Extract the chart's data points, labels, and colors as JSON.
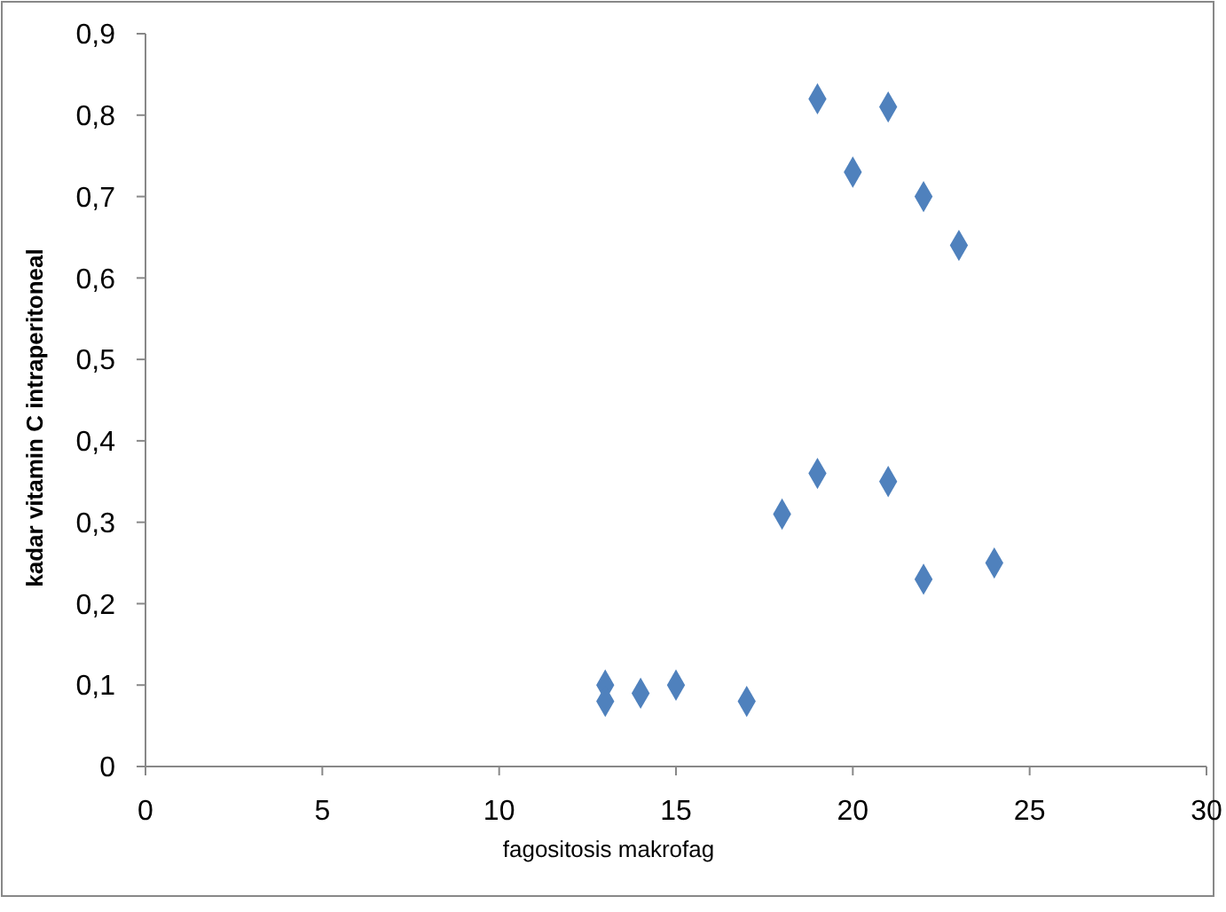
{
  "chart_data": {
    "type": "scatter",
    "xlabel": "fagositosis makrofag",
    "ylabel": "kadar vitamin C intraperitoneal",
    "x": [
      19,
      21,
      20,
      22,
      23,
      19,
      21,
      18,
      22,
      24,
      13,
      13,
      14,
      15,
      17
    ],
    "series": [
      {
        "color": "#4f81bd",
        "values": [
          0.82,
          0.81,
          0.73,
          0.7,
          0.64,
          0.36,
          0.35,
          0.31,
          0.23,
          0.25,
          0.1,
          0.08,
          0.09,
          0.1,
          0.08
        ]
      }
    ],
    "xlim": [
      0,
      30
    ],
    "xticks": [
      0,
      5,
      10,
      15,
      20,
      25,
      30
    ],
    "ylim": [
      0,
      0.9
    ],
    "yticks": [
      0,
      {
        "value": 0.1,
        "label": "0,1"
      },
      {
        "value": 0.2,
        "label": "0,2"
      },
      {
        "value": 0.3,
        "label": "0,3"
      },
      {
        "value": 0.4,
        "label": "0,4"
      },
      {
        "value": 0.5,
        "label": "0,5"
      },
      {
        "value": 0.6,
        "label": "0,6"
      },
      {
        "value": 0.7,
        "label": "0,7"
      },
      {
        "value": 0.8,
        "label": "0,8"
      },
      {
        "value": 0.9,
        "label": "0,9"
      }
    ],
    "grid": false,
    "marker": "diamond"
  }
}
